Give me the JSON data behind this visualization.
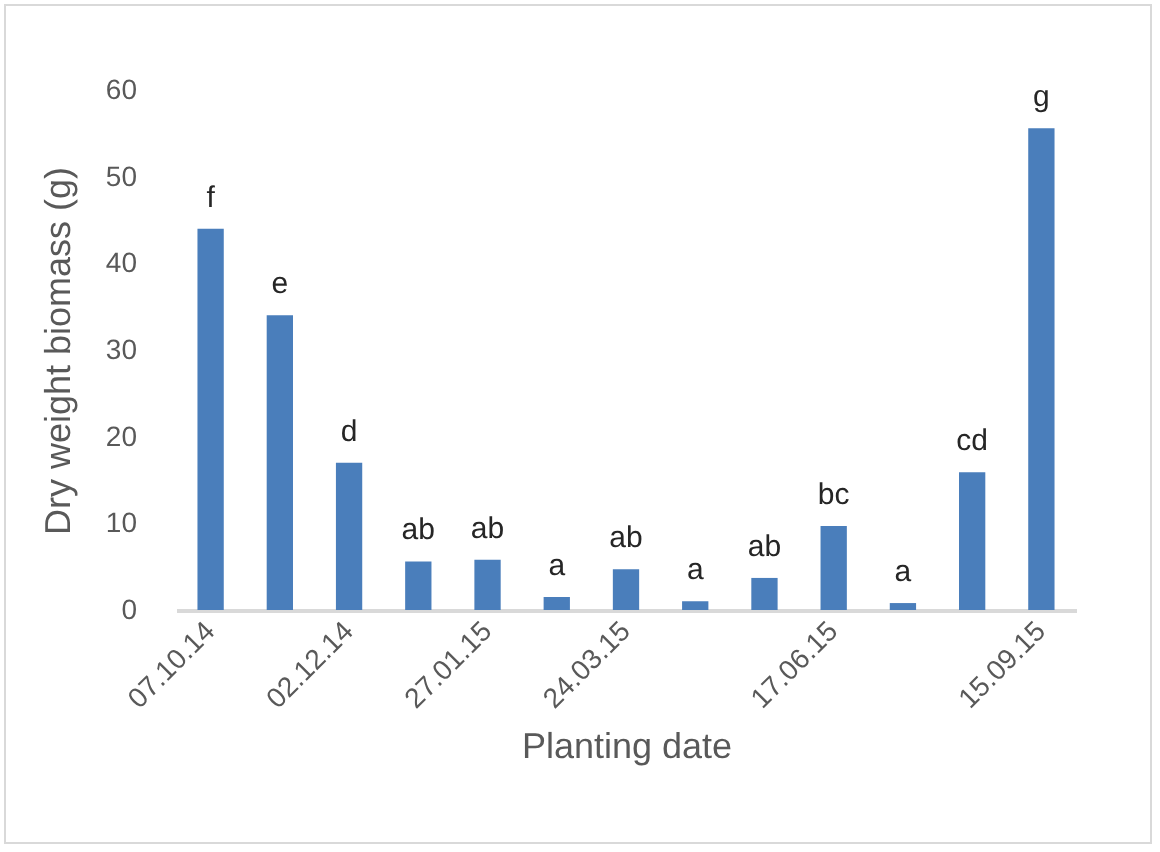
{
  "chart_data": {
    "type": "bar",
    "xlabel": "Planting date",
    "ylabel": "Dry weight biomass (g)",
    "categories": [
      "07.10.14",
      null,
      "02.12.14",
      null,
      "27.01.15",
      null,
      "24.03.15",
      null,
      null,
      "17.06.15",
      null,
      null,
      "15.09.15"
    ],
    "values": [
      44,
      34,
      17,
      5.6,
      5.8,
      1.5,
      4.7,
      1.0,
      3.7,
      9.7,
      0.8,
      15.9,
      55.6
    ],
    "value_labels": [
      "f",
      "e",
      "d",
      "ab",
      "ab",
      "a",
      "ab",
      "a",
      "ab",
      "bc",
      "a",
      "cd",
      "g"
    ],
    "color": "#4a7ebb",
    "ylim": [
      0,
      60
    ],
    "yticks": [
      0,
      10,
      20,
      30,
      40,
      50,
      60
    ],
    "grid": false
  }
}
